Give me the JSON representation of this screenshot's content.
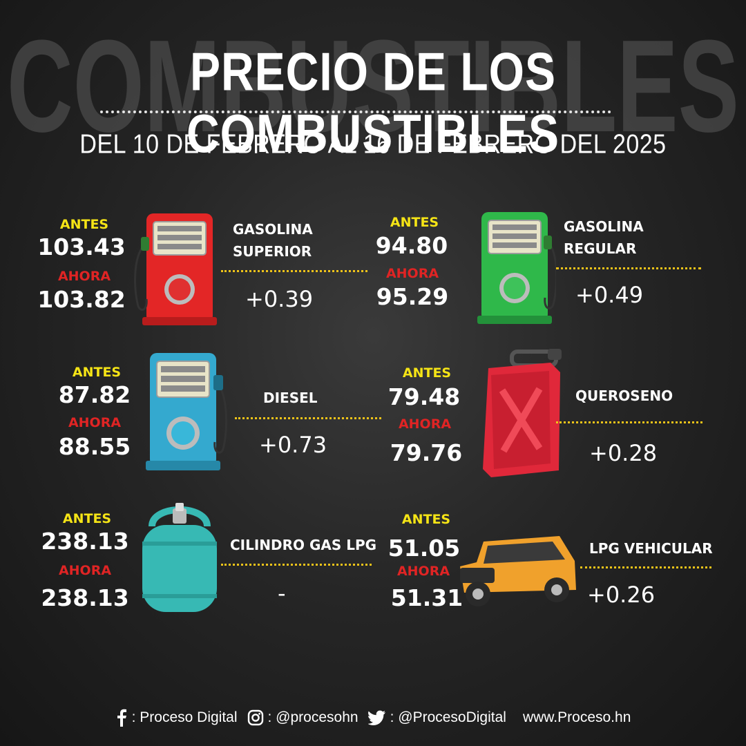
{
  "header": {
    "watermark": "COMBUSTIBLES",
    "title": "PRECIO DE LOS COMBUSTIBLES",
    "subtitle": "DEL 10 DE FEBRERO AL 16 DE FEBRERO DEL 2025"
  },
  "labels": {
    "before": "ANTES",
    "now": "AHORA"
  },
  "fuels": {
    "gasolina_superior": {
      "name_line1": "GASOLINA",
      "name_line2": "SUPERIOR",
      "before": "103.43",
      "now": "103.82",
      "diff": "+0.39",
      "icon": "red-fuel-pump-icon",
      "color": "#e32626"
    },
    "gasolina_regular": {
      "name_line1": "GASOLINA",
      "name_line2": "REGULAR",
      "before": "94.80",
      "now": "95.29",
      "diff": "+0.49",
      "icon": "green-fuel-pump-icon",
      "color": "#2fb84a"
    },
    "diesel": {
      "name": "DIESEL",
      "before": "87.82",
      "now": "88.55",
      "diff": "+0.73",
      "icon": "blue-fuel-pump-icon",
      "color": "#34a9cf"
    },
    "queroseno": {
      "name": "QUEROSENO",
      "before": "79.48",
      "now": "79.76",
      "diff": "+0.28",
      "icon": "red-jerrycan-icon",
      "color": "#e0283a"
    },
    "cilindro_gas_lpg": {
      "name": "CILINDRO GAS LPG",
      "before": "238.13",
      "now": "238.13",
      "diff": "-",
      "icon": "gas-cylinder-icon",
      "color": "#37b9b4"
    },
    "lpg_vehicular": {
      "name": "LPG VEHICULAR",
      "before": "51.05",
      "now": "51.31",
      "diff": "+0.26",
      "icon": "orange-car-icon",
      "color": "#f0a12c"
    }
  },
  "footer": {
    "facebook": ": Proceso Digital",
    "instagram": ": @procesohn",
    "twitter": ": @ProcesoDigital",
    "website": "www.Proceso.hn"
  }
}
